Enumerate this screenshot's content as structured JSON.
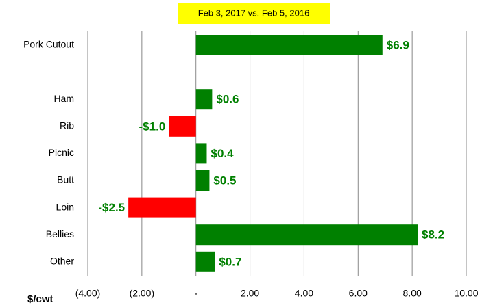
{
  "chart_data": {
    "type": "hbar",
    "title": "Feb 3, 2017 vs. Feb 5, 2016",
    "xlabel": "$/cwt",
    "categories": [
      "Pork Cutout",
      null,
      "Ham",
      "Rib",
      "Picnic",
      "Butt",
      "Loin",
      "Bellies",
      "Other"
    ],
    "values": [
      6.9,
      null,
      0.6,
      -1.0,
      0.4,
      0.5,
      -2.5,
      8.2,
      0.7
    ],
    "value_labels": [
      "$6.9",
      null,
      "$0.6",
      "-$1.0",
      "$0.4",
      "$0.5",
      "-$2.5",
      "$8.2",
      "$0.7"
    ],
    "color": "#008000",
    "negative_color": "#ff0000",
    "xlim": [
      -4,
      10
    ],
    "xticks": [
      {
        "value": -4,
        "label": "(4.00)"
      },
      {
        "value": -2,
        "label": "(2.00)"
      },
      {
        "value": 0,
        "label": "-"
      },
      {
        "value": 2,
        "label": "2.00"
      },
      {
        "value": 4,
        "label": "4.00"
      },
      {
        "value": 6,
        "label": "6.00"
      },
      {
        "value": 8,
        "label": "8.00"
      },
      {
        "value": 10,
        "label": "10.00"
      }
    ],
    "grid": true
  }
}
